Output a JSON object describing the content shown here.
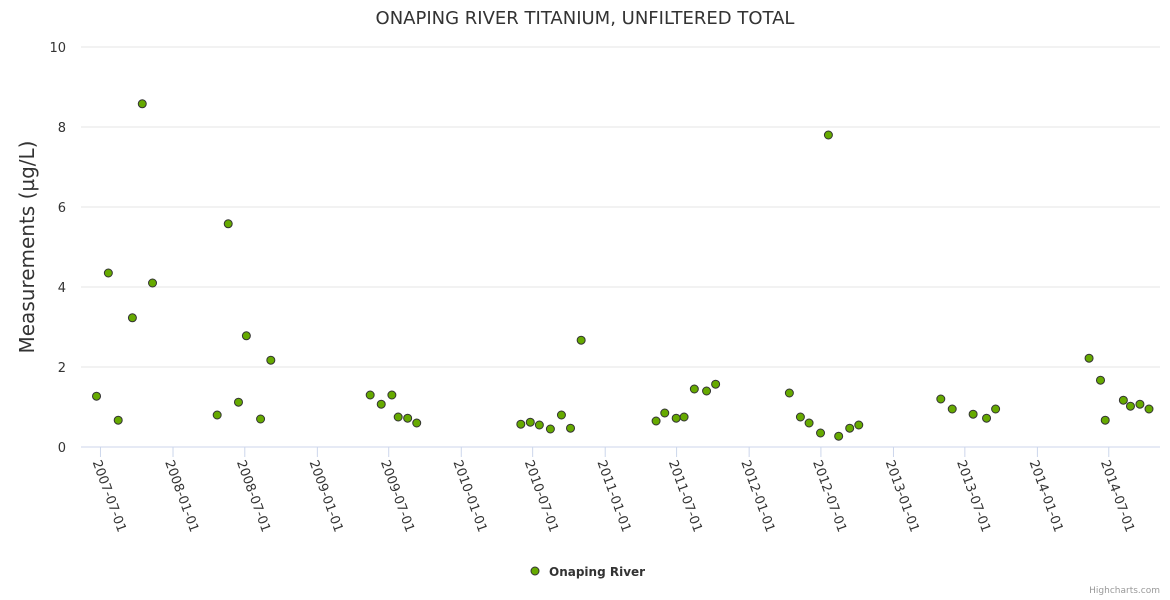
{
  "chart_data": {
    "type": "scatter",
    "title": "ONAPING RIVER TITANIUM, UNFILTERED TOTAL",
    "xlabel": "",
    "ylabel": "Measurements (µg/L)",
    "ylim": [
      0,
      10
    ],
    "yticks": [
      "0",
      "2",
      "4",
      "6",
      "8",
      "10"
    ],
    "xlim": [
      "2007-06-07",
      "2014-10-11"
    ],
    "xticks": [
      "2007-07-01",
      "2008-01-01",
      "2008-07-01",
      "2009-01-01",
      "2009-07-01",
      "2010-01-01",
      "2010-07-01",
      "2011-01-01",
      "2011-07-01",
      "2012-01-01",
      "2012-07-01",
      "2013-01-01",
      "2013-07-01",
      "2014-01-01",
      "2014-07-01"
    ],
    "grid": true,
    "legend": "bottom-center",
    "series": [
      {
        "name": "Onaping River",
        "color": "#66aa00",
        "points": [
          [
            "2007-06-21",
            1.27
          ],
          [
            "2007-07-21",
            4.35
          ],
          [
            "2007-08-15",
            0.67
          ],
          [
            "2007-09-20",
            3.23
          ],
          [
            "2007-10-15",
            8.58
          ],
          [
            "2007-11-10",
            4.1
          ],
          [
            "2008-04-22",
            0.8
          ],
          [
            "2008-05-20",
            5.58
          ],
          [
            "2008-06-15",
            1.12
          ],
          [
            "2008-07-05",
            2.78
          ],
          [
            "2008-08-10",
            0.7
          ],
          [
            "2008-09-05",
            2.17
          ],
          [
            "2009-05-15",
            1.3
          ],
          [
            "2009-06-12",
            1.07
          ],
          [
            "2009-07-09",
            1.3
          ],
          [
            "2009-07-25",
            0.75
          ],
          [
            "2009-08-18",
            0.72
          ],
          [
            "2009-09-10",
            0.6
          ],
          [
            "2010-06-01",
            0.57
          ],
          [
            "2010-06-25",
            0.62
          ],
          [
            "2010-07-18",
            0.55
          ],
          [
            "2010-08-15",
            0.45
          ],
          [
            "2010-09-12",
            0.8
          ],
          [
            "2010-10-05",
            0.47
          ],
          [
            "2010-11-01",
            2.67
          ],
          [
            "2011-05-10",
            0.65
          ],
          [
            "2011-06-01",
            0.85
          ],
          [
            "2011-06-30",
            0.72
          ],
          [
            "2011-07-20",
            0.75
          ],
          [
            "2011-08-15",
            1.45
          ],
          [
            "2011-09-15",
            1.4
          ],
          [
            "2011-10-08",
            1.57
          ],
          [
            "2012-04-12",
            1.35
          ],
          [
            "2012-05-10",
            0.75
          ],
          [
            "2012-06-01",
            0.6
          ],
          [
            "2012-06-30",
            0.35
          ],
          [
            "2012-07-20",
            7.8
          ],
          [
            "2012-08-15",
            0.27
          ],
          [
            "2012-09-12",
            0.47
          ],
          [
            "2012-10-05",
            0.55
          ],
          [
            "2013-05-01",
            1.2
          ],
          [
            "2013-05-30",
            0.95
          ],
          [
            "2013-07-22",
            0.82
          ],
          [
            "2013-08-25",
            0.72
          ],
          [
            "2013-09-17",
            0.95
          ],
          [
            "2014-05-12",
            2.22
          ],
          [
            "2014-06-10",
            1.67
          ],
          [
            "2014-06-22",
            0.67
          ],
          [
            "2014-08-07",
            1.17
          ],
          [
            "2014-08-25",
            1.02
          ],
          [
            "2014-09-18",
            1.07
          ],
          [
            "2014-10-11",
            0.95
          ]
        ]
      }
    ]
  },
  "credits": "Highcharts.com"
}
